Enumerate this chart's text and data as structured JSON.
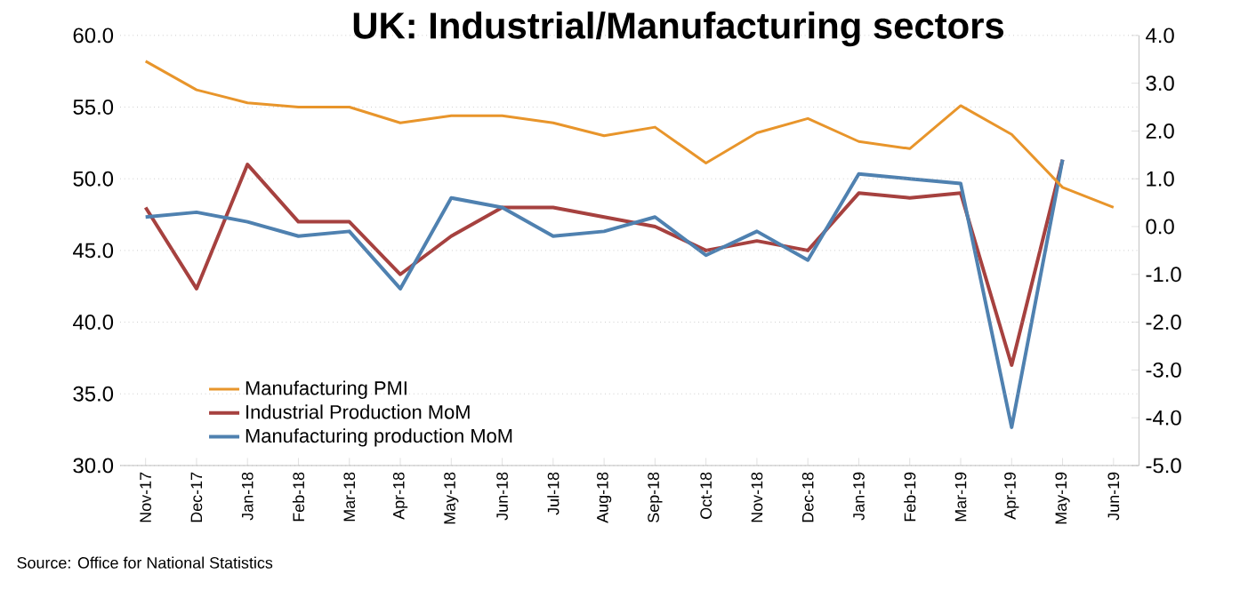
{
  "chart_data": {
    "type": "line",
    "title": "UK: Industrial/Manufacturing sectors",
    "categories": [
      "Nov-17",
      "Dec-17",
      "Jan-18",
      "Feb-18",
      "Mar-18",
      "Apr-18",
      "May-18",
      "Jun-18",
      "Jul-18",
      "Aug-18",
      "Sep-18",
      "Oct-18",
      "Nov-18",
      "Dec-18",
      "Jan-19",
      "Feb-19",
      "Mar-19",
      "Apr-19",
      "May-19",
      "Jun-19"
    ],
    "series": [
      {
        "name": "Manufacturing PMI",
        "color": "#e8952b",
        "values": [
          58.2,
          56.2,
          55.3,
          55.0,
          55.0,
          53.9,
          54.4,
          54.4,
          53.9,
          53.0,
          53.6,
          51.1,
          53.2,
          54.2,
          52.6,
          52.1,
          55.1,
          53.1,
          49.4,
          48.0
        ]
      },
      {
        "name": "Industrial Production MoM",
        "color": "#a6413f",
        "axis": "y2",
        "values": [
          0.4,
          -1.3,
          1.3,
          0.1,
          0.1,
          -1.0,
          -0.2,
          0.4,
          0.4,
          0.2,
          0.0,
          -0.5,
          -0.3,
          -0.5,
          0.7,
          0.6,
          0.7,
          -2.9,
          1.4,
          null
        ]
      },
      {
        "name": "Manufacturing production MoM",
        "color": "#4f81b0",
        "axis": "y2",
        "values": [
          0.2,
          0.3,
          0.1,
          -0.2,
          -0.1,
          -1.3,
          0.6,
          0.4,
          -0.2,
          -0.1,
          0.2,
          -0.6,
          -0.1,
          -0.7,
          1.1,
          1.0,
          0.9,
          -4.2,
          1.4,
          null
        ]
      }
    ],
    "ylim": [
      30,
      60
    ],
    "yticks": [
      {
        "value": 30,
        "label": "30.0"
      },
      {
        "value": 35,
        "label": "35.0"
      },
      {
        "value": 40,
        "label": "40.0"
      },
      {
        "value": 45,
        "label": "45.0"
      },
      {
        "value": 50,
        "label": "50.0"
      },
      {
        "value": 55,
        "label": "55.0"
      },
      {
        "value": 60,
        "label": "60.0"
      }
    ],
    "y2lim": [
      -5,
      4
    ],
    "y2ticks": [
      {
        "value": -5,
        "label": "-5.0"
      },
      {
        "value": -4,
        "label": "-4.0"
      },
      {
        "value": -3,
        "label": "-3.0"
      },
      {
        "value": -2,
        "label": "-2.0"
      },
      {
        "value": -1,
        "label": "-1.0"
      },
      {
        "value": 0,
        "label": "0.0"
      },
      {
        "value": 1,
        "label": "1.0"
      },
      {
        "value": 2,
        "label": "2.0"
      },
      {
        "value": 3,
        "label": "3.0"
      },
      {
        "value": 4,
        "label": "4.0"
      }
    ],
    "grid": "y",
    "legend": "bottom left",
    "annotations": [
      "Source: Office for National Statistics"
    ]
  }
}
